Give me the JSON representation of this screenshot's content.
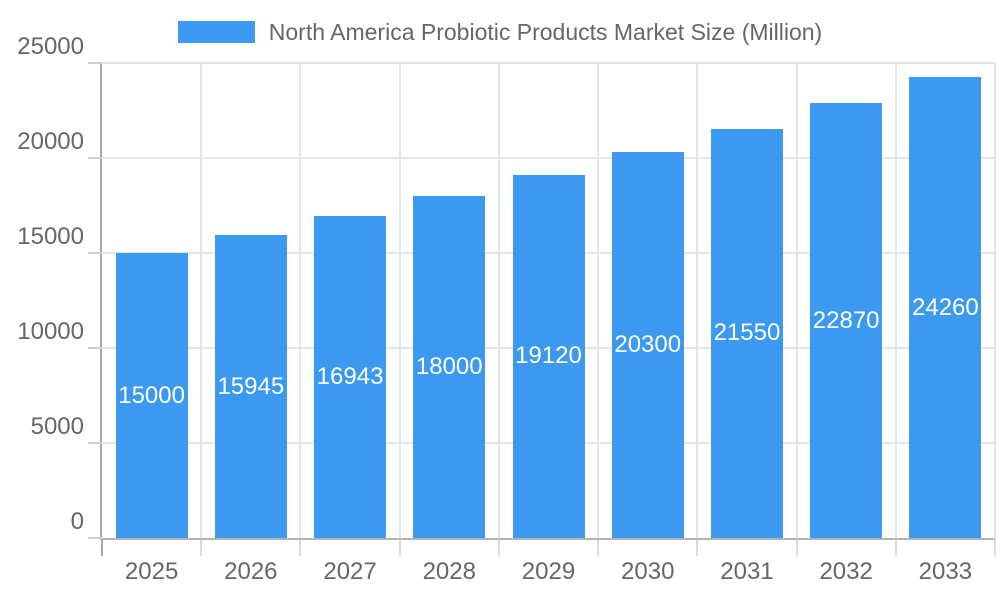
{
  "legend": {
    "label": "North America Probiotic Products Market Size (Million)"
  },
  "chart_data": {
    "type": "bar",
    "title": "North America Probiotic Products Market Size (Million)",
    "categories": [
      "2025",
      "2026",
      "2027",
      "2028",
      "2029",
      "2030",
      "2031",
      "2032",
      "2033"
    ],
    "values": [
      15000,
      15945,
      16943,
      18000,
      19120,
      20300,
      21550,
      22870,
      24260
    ],
    "xlabel": "",
    "ylabel": "",
    "ylim": [
      0,
      25000
    ],
    "yticks": [
      0,
      5000,
      10000,
      15000,
      20000,
      25000
    ],
    "grid": true,
    "legend_position": "top",
    "colors": {
      "bar": "#3B99F0",
      "value_label": "#ffffff",
      "axis_text": "#666666",
      "grid_line": "#e5e5e5",
      "axis_line": "#a8a8a8"
    }
  }
}
